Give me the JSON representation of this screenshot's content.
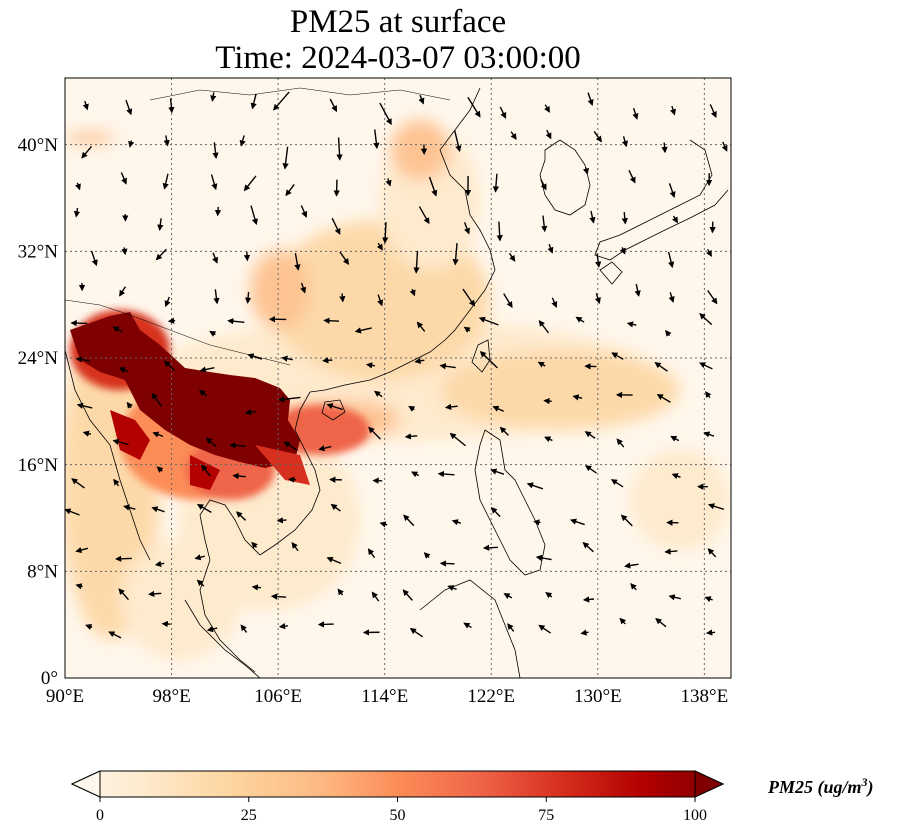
{
  "title_line1": "PM25 at surface",
  "title_line2": "Time: 2024-03-07 03:00:00",
  "lon_ticks": [
    "90°E",
    "98°E",
    "106°E",
    "114°E",
    "122°E",
    "130°E",
    "138°E"
  ],
  "lat_ticks": [
    "0°",
    "8°N",
    "16°N",
    "24°N",
    "32°N",
    "40°N"
  ],
  "colorbar": {
    "ticks": [
      "0",
      "25",
      "50",
      "75",
      "100"
    ],
    "label_main": "PM25 (ug/m",
    "label_sup": "3",
    "label_close": ")",
    "colormap": "OrRd",
    "min": 0,
    "max": 100,
    "extend": "both"
  },
  "map_extent": {
    "lon": [
      90,
      140
    ],
    "lat": [
      0,
      45
    ]
  },
  "colors": {
    "low": "#fff7ec",
    "mid": "#fc8d59",
    "high": "#7f0000"
  }
}
